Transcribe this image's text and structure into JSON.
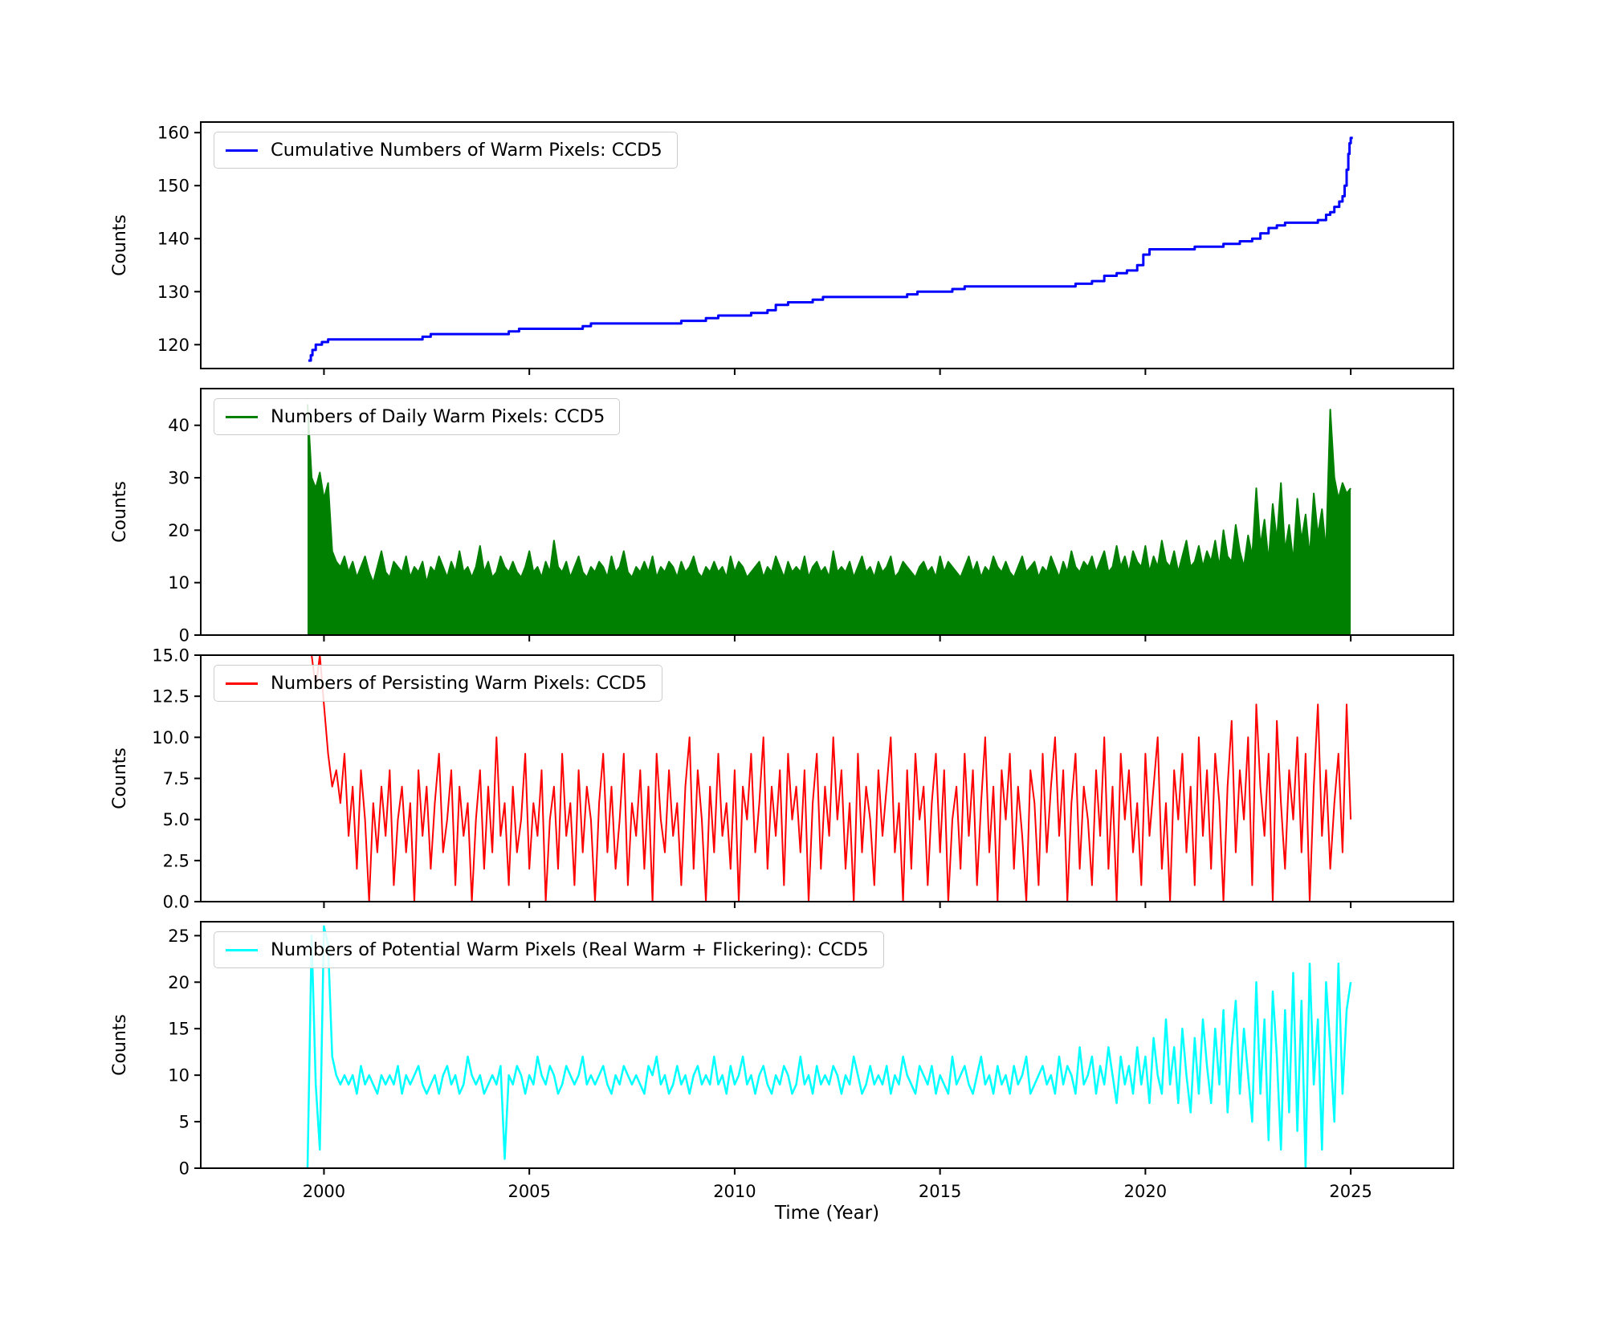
{
  "figure": {
    "xlabel": "Time (Year)",
    "background": "#ffffff"
  },
  "axes": {
    "xlim": [
      1997.0,
      2027.5
    ],
    "xticks": [
      2000,
      2005,
      2010,
      2015,
      2020,
      2025
    ],
    "xtick_labels": [
      "2000",
      "2005",
      "2010",
      "2015",
      "2020",
      "2025"
    ]
  },
  "chart_data": [
    {
      "type": "line",
      "mode": "step",
      "name": "cumulative-warm-pixels",
      "legend": "Cumulative Numbers of Warm Pixels: CCD5",
      "color": "#0000ff",
      "lw": 3,
      "ylabel": "Counts",
      "ylim": [
        115.5,
        162
      ],
      "yticks": [
        120,
        130,
        140,
        150,
        160
      ],
      "ytick_labels": [
        "120",
        "130",
        "140",
        "150",
        "160"
      ],
      "points": [
        [
          1999.62,
          117
        ],
        [
          1999.68,
          118
        ],
        [
          1999.72,
          119
        ],
        [
          1999.8,
          120
        ],
        [
          1999.95,
          120.5
        ],
        [
          2000.1,
          121
        ],
        [
          2002.4,
          121.5
        ],
        [
          2002.6,
          122
        ],
        [
          2004.5,
          122.5
        ],
        [
          2004.75,
          123
        ],
        [
          2006.3,
          123.5
        ],
        [
          2006.5,
          124
        ],
        [
          2008.7,
          124.5
        ],
        [
          2009.3,
          125
        ],
        [
          2009.6,
          125.5
        ],
        [
          2010.4,
          126
        ],
        [
          2010.8,
          126.5
        ],
        [
          2011.0,
          127.5
        ],
        [
          2011.3,
          128
        ],
        [
          2011.9,
          128.5
        ],
        [
          2012.15,
          129
        ],
        [
          2014.2,
          129.5
        ],
        [
          2014.45,
          130
        ],
        [
          2015.3,
          130.5
        ],
        [
          2015.6,
          131
        ],
        [
          2018.3,
          131.5
        ],
        [
          2018.7,
          132
        ],
        [
          2019.0,
          133
        ],
        [
          2019.3,
          133.5
        ],
        [
          2019.55,
          134
        ],
        [
          2019.8,
          135
        ],
        [
          2019.95,
          137
        ],
        [
          2020.1,
          138
        ],
        [
          2021.2,
          138.5
        ],
        [
          2021.9,
          139
        ],
        [
          2022.3,
          139.5
        ],
        [
          2022.6,
          140
        ],
        [
          2022.8,
          141
        ],
        [
          2023.0,
          142
        ],
        [
          2023.2,
          142.5
        ],
        [
          2023.4,
          143
        ],
        [
          2024.2,
          143.5
        ],
        [
          2024.4,
          144.5
        ],
        [
          2024.5,
          145
        ],
        [
          2024.6,
          146
        ],
        [
          2024.72,
          147
        ],
        [
          2024.8,
          148
        ],
        [
          2024.85,
          150
        ],
        [
          2024.9,
          153
        ],
        [
          2024.94,
          156
        ],
        [
          2024.97,
          158
        ],
        [
          2025.0,
          159
        ],
        [
          2025.05,
          159
        ]
      ]
    },
    {
      "type": "area",
      "name": "daily-warm-pixels",
      "legend": "Numbers of Daily Warm Pixels: CCD5",
      "color": "#008000",
      "lw": 2,
      "fill": true,
      "ylabel": "Counts",
      "ylim": [
        0,
        47
      ],
      "yticks": [
        0,
        10,
        20,
        30,
        40
      ],
      "ytick_labels": [
        "0",
        "10",
        "20",
        "30",
        "40"
      ],
      "x0": 1999.6,
      "dx": 0.1,
      "values": [
        44,
        30,
        28,
        31,
        26,
        29,
        16,
        14,
        13,
        15,
        12,
        14,
        11,
        13,
        15,
        12,
        10,
        13,
        16,
        12,
        11,
        14,
        13,
        12,
        15,
        11,
        13,
        12,
        14,
        10,
        13,
        12,
        15,
        13,
        11,
        14,
        12,
        16,
        12,
        13,
        11,
        13,
        17,
        12,
        14,
        11,
        12,
        15,
        13,
        12,
        14,
        12,
        11,
        13,
        16,
        12,
        13,
        11,
        14,
        12,
        18,
        13,
        12,
        14,
        11,
        13,
        15,
        12,
        11,
        13,
        12,
        14,
        13,
        11,
        15,
        12,
        13,
        16,
        12,
        11,
        13,
        12,
        14,
        12,
        15,
        11,
        13,
        12,
        14,
        13,
        11,
        14,
        12,
        13,
        15,
        12,
        11,
        13,
        12,
        14,
        12,
        13,
        11,
        15,
        12,
        14,
        13,
        11,
        12,
        13,
        14,
        11,
        13,
        12,
        15,
        13,
        11,
        14,
        12,
        13,
        12,
        15,
        11,
        13,
        14,
        12,
        13,
        11,
        16,
        12,
        13,
        12,
        14,
        11,
        13,
        15,
        12,
        13,
        11,
        14,
        12,
        13,
        15,
        11,
        12,
        14,
        13,
        12,
        11,
        13,
        14,
        12,
        13,
        11,
        15,
        12,
        14,
        13,
        12,
        11,
        13,
        15,
        12,
        14,
        11,
        13,
        12,
        15,
        13,
        12,
        14,
        12,
        11,
        13,
        15,
        12,
        13,
        14,
        11,
        13,
        12,
        15,
        13,
        11,
        14,
        12,
        16,
        13,
        12,
        14,
        13,
        15,
        12,
        14,
        16,
        12,
        13,
        17,
        13,
        15,
        12,
        16,
        14,
        13,
        17,
        12,
        15,
        13,
        18,
        14,
        13,
        16,
        12,
        15,
        18,
        13,
        14,
        17,
        13,
        16,
        14,
        18,
        13,
        20,
        15,
        14,
        21,
        16,
        13,
        19,
        15,
        28,
        17,
        22,
        14,
        25,
        18,
        29,
        16,
        21,
        14,
        26,
        18,
        23,
        15,
        27,
        19,
        24,
        16,
        43,
        30,
        26,
        29,
        27,
        28
      ]
    },
    {
      "type": "line",
      "name": "persisting-warm-pixels",
      "legend": "Numbers of Persisting Warm Pixels: CCD5",
      "color": "#ff0000",
      "lw": 2,
      "ylabel": "Counts",
      "ylim": [
        0,
        15
      ],
      "yticks": [
        0,
        2.5,
        5,
        7.5,
        10,
        12.5,
        15
      ],
      "ytick_labels": [
        "0.0",
        "2.5",
        "5.0",
        "7.5",
        "10.0",
        "12.5",
        "15.0"
      ],
      "x0": 1999.6,
      "dx": 0.1,
      "values": [
        15,
        15,
        13,
        15,
        12,
        9,
        7,
        8,
        6,
        9,
        4,
        7,
        2,
        8,
        5,
        0,
        6,
        3,
        7,
        4,
        8,
        1,
        5,
        7,
        3,
        6,
        0,
        8,
        4,
        7,
        2,
        6,
        9,
        3,
        5,
        8,
        1,
        7,
        4,
        6,
        0,
        5,
        8,
        2,
        7,
        3,
        10,
        4,
        6,
        1,
        7,
        3,
        5,
        9,
        2,
        6,
        4,
        8,
        0,
        5,
        7,
        2,
        9,
        4,
        6,
        1,
        8,
        3,
        7,
        5,
        0,
        6,
        9,
        3,
        7,
        2,
        5,
        9,
        1,
        6,
        4,
        8,
        2,
        7,
        0,
        9,
        5,
        3,
        8,
        4,
        6,
        1,
        7,
        10,
        2,
        8,
        5,
        0,
        7,
        3,
        9,
        4,
        6,
        2,
        8,
        0,
        7,
        5,
        9,
        3,
        6,
        10,
        2,
        7,
        4,
        8,
        1,
        9,
        5,
        7,
        3,
        8,
        0,
        6,
        9,
        2,
        7,
        4,
        10,
        5,
        8,
        2,
        6,
        0,
        9,
        3,
        7,
        5,
        1,
        8,
        4,
        7,
        10,
        3,
        6,
        0,
        8,
        2,
        9,
        5,
        7,
        1,
        6,
        9,
        3,
        8,
        0,
        5,
        7,
        2,
        9,
        4,
        8,
        1,
        6,
        10,
        3,
        7,
        0,
        8,
        5,
        9,
        2,
        7,
        4,
        0,
        8,
        6,
        1,
        9,
        3,
        7,
        10,
        4,
        8,
        0,
        6,
        9,
        2,
        7,
        5,
        1,
        8,
        4,
        10,
        2,
        7,
        0,
        9,
        5,
        8,
        3,
        6,
        1,
        9,
        4,
        7,
        10,
        2,
        6,
        0,
        8,
        5,
        9,
        3,
        7,
        1,
        10,
        4,
        8,
        2,
        9,
        6,
        0,
        7,
        11,
        3,
        8,
        5,
        10,
        1,
        12,
        7,
        4,
        9,
        0,
        11,
        6,
        2,
        8,
        5,
        10,
        3,
        9,
        0,
        7,
        12,
        4,
        8,
        2,
        6,
        9,
        3,
        12,
        5
      ]
    },
    {
      "type": "line",
      "name": "potential-warm-pixels",
      "legend": "Numbers of Potential Warm Pixels (Real Warm + Flickering): CCD5",
      "color": "#00ffff",
      "lw": 2.5,
      "ylabel": "Counts",
      "ylim": [
        0,
        26.5
      ],
      "yticks": [
        0,
        5,
        10,
        15,
        20,
        25
      ],
      "ytick_labels": [
        "0",
        "5",
        "10",
        "15",
        "20",
        "25"
      ],
      "x0": 1999.6,
      "dx": 0.1,
      "values": [
        0,
        25,
        9,
        2,
        26,
        24,
        12,
        10,
        9,
        10,
        9,
        10,
        8,
        11,
        9,
        10,
        9,
        8,
        10,
        9,
        10,
        9,
        11,
        8,
        10,
        9,
        10,
        11,
        9,
        8,
        9,
        10,
        8,
        10,
        11,
        9,
        10,
        8,
        9,
        12,
        10,
        9,
        10,
        8,
        9,
        10,
        9,
        11,
        1,
        10,
        9,
        11,
        10,
        8,
        10,
        9,
        12,
        10,
        9,
        11,
        10,
        8,
        9,
        11,
        10,
        9,
        10,
        12,
        9,
        10,
        9,
        10,
        11,
        9,
        8,
        10,
        9,
        11,
        10,
        9,
        10,
        9,
        8,
        11,
        10,
        12,
        9,
        10,
        8,
        9,
        11,
        9,
        10,
        8,
        10,
        11,
        9,
        10,
        9,
        12,
        9,
        10,
        8,
        11,
        9,
        10,
        12,
        9,
        10,
        8,
        10,
        11,
        9,
        8,
        10,
        9,
        11,
        10,
        8,
        9,
        12,
        9,
        10,
        8,
        11,
        9,
        10,
        9,
        11,
        10,
        8,
        10,
        9,
        12,
        10,
        8,
        9,
        11,
        9,
        10,
        9,
        11,
        8,
        10,
        9,
        12,
        10,
        9,
        8,
        11,
        10,
        9,
        11,
        8,
        10,
        9,
        8,
        12,
        9,
        10,
        11,
        9,
        8,
        10,
        12,
        9,
        10,
        8,
        11,
        9,
        10,
        8,
        11,
        9,
        10,
        12,
        8,
        9,
        10,
        11,
        9,
        10,
        8,
        12,
        9,
        11,
        10,
        8,
        13,
        9,
        10,
        12,
        8,
        11,
        9,
        13,
        10,
        7,
        12,
        9,
        11,
        8,
        13,
        9,
        12,
        7,
        14,
        10,
        8,
        16,
        9,
        13,
        7,
        15,
        10,
        6,
        14,
        8,
        16,
        11,
        7,
        15,
        9,
        17,
        6,
        13,
        18,
        8,
        15,
        10,
        5,
        20,
        8,
        16,
        3,
        19,
        12,
        2,
        17,
        6,
        21,
        4,
        18,
        0,
        22,
        9,
        16,
        2,
        20,
        13,
        5,
        22,
        8,
        17,
        20
      ]
    }
  ]
}
